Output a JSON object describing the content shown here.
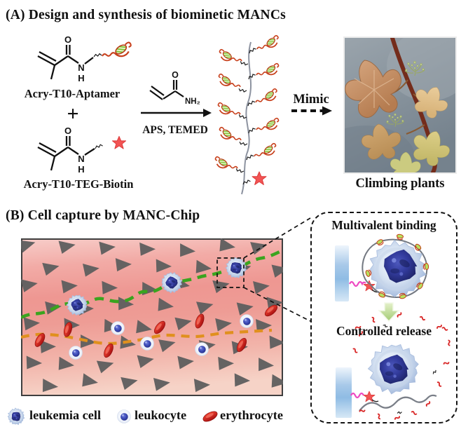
{
  "panelA": {
    "title": "(A) Design and synthesis of biominetic MANCs",
    "monomer1_label": "Acry-T10-Aptamer",
    "plus_sign": "+",
    "monomer2_label": "Acry-T10-TEG-Biotin",
    "reagents": "APS, TEMED",
    "mimic_label": "Mimic",
    "photo_caption": "Climbing plants"
  },
  "atoms": {
    "o": "O",
    "n": "N",
    "h": "H",
    "nh2": "NH₂"
  },
  "panelB": {
    "title": "(B) Cell capture by MANC-Chip",
    "legend": [
      {
        "icon": "leukemia-cell-icon",
        "label": "leukemia cell"
      },
      {
        "icon": "leukocyte-icon",
        "label": "leukocyte"
      },
      {
        "icon": "erythrocyte-icon",
        "label": "erythrocyte"
      }
    ]
  },
  "inset": {
    "binding_title": "Multivalent binding",
    "release_title": "Controlled release"
  },
  "colors": {
    "capture_path_green": "#3aa41f",
    "waste_path_orange": "#e0901e",
    "chip_pink_mid": "#ee9792",
    "triangle_gray": "#5f5f5f",
    "erythrocyte_red": "#d81f1f",
    "leukocyte_blue": "#3d4bb5",
    "leukemia_navy": "#272e78",
    "aptamer_red": "#c8401c",
    "aptamer_green": "#7cc234",
    "star_red": "#f25454",
    "bar_blue": "#8fbce4"
  }
}
